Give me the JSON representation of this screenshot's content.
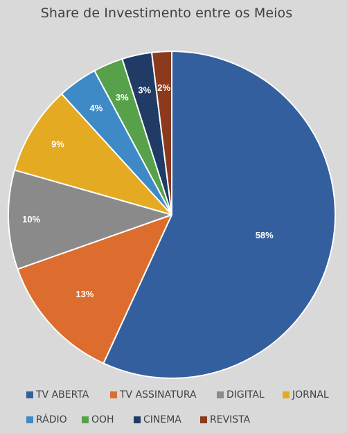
{
  "chart_data": {
    "type": "pie",
    "title": "Share de Investimento entre os Meios",
    "categories": [
      "TV ABERTA",
      "TV ASSINATURA",
      "DIGITAL",
      "JORNAL",
      "RÁDIO",
      "OOH",
      "CINEMA",
      "REVISTA"
    ],
    "values": [
      58,
      13,
      10,
      9,
      4,
      3,
      3,
      2
    ],
    "value_labels": [
      "58%",
      "13%",
      "10%",
      "9%",
      "4%",
      "3%",
      "3%",
      "2%"
    ],
    "colors": [
      "#335f9f",
      "#dc6d2e",
      "#8a8a8a",
      "#e3aa22",
      "#3e8ac7",
      "#56a14a",
      "#1f3b66",
      "#8b3a1e"
    ],
    "legend_position": "bottom",
    "start_angle": "12 o'clock",
    "direction": "clockwise"
  }
}
